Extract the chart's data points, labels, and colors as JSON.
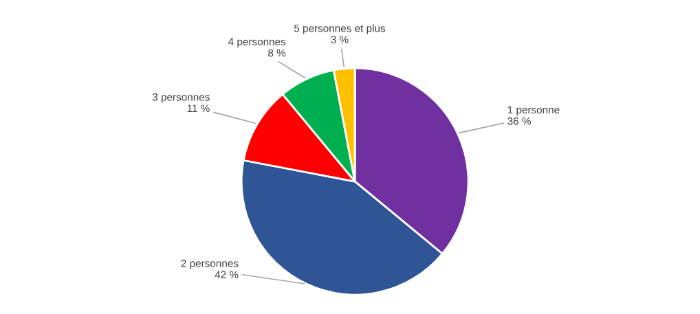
{
  "chart_data": {
    "type": "pie",
    "categories": [
      "1 personne",
      "2 personnes",
      "3 personnes",
      "4 personnes",
      "5 personnes et plus"
    ],
    "values": [
      36,
      42,
      11,
      8,
      3
    ],
    "colors": [
      "#7030a0",
      "#2f5597",
      "#ff0000",
      "#00b050",
      "#ffc000"
    ],
    "value_labels": [
      "36 %",
      "42 %",
      "11 %",
      "8 %",
      "3 %"
    ],
    "legend": false
  }
}
